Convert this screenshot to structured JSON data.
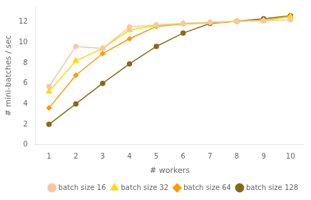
{
  "chart_data": {
    "type": "line",
    "xlabel": "# workers",
    "ylabel": "# mini-batches / sec",
    "x": [
      1,
      2,
      3,
      4,
      5,
      6,
      7,
      8,
      9,
      10
    ],
    "series": [
      {
        "name": "batch size 16",
        "color": "#f5c9a0",
        "marker": "circle",
        "values": [
          5.7,
          9.6,
          9.4,
          11.5,
          11.7,
          11.85,
          11.95,
          12.05,
          12.1,
          12.2
        ]
      },
      {
        "name": "batch size 32",
        "color": "#ffd700",
        "marker": "triangle",
        "values": [
          5.2,
          8.2,
          9.4,
          11.2,
          11.65,
          11.85,
          11.95,
          12.05,
          12.1,
          12.5
        ]
      },
      {
        "name": "batch size 64",
        "color": "#ff9900",
        "marker": "diamond",
        "values": [
          3.6,
          6.8,
          8.9,
          10.35,
          11.55,
          11.8,
          11.9,
          12.05,
          12.15,
          12.55
        ]
      },
      {
        "name": "batch size 128",
        "color": "#8b6914",
        "marker": "circle",
        "values": [
          2.0,
          4.0,
          6.0,
          7.9,
          9.6,
          10.9,
          11.85,
          12.05,
          12.3,
          12.6
        ]
      }
    ],
    "xlim": [
      0.5,
      10.5
    ],
    "xticks": [
      1,
      2,
      3,
      4,
      5,
      6,
      7,
      8,
      9,
      10
    ],
    "ylim": [
      0,
      13.5
    ],
    "yticks": [
      0,
      2,
      4,
      6,
      8,
      10,
      12
    ],
    "grid": false,
    "legend": "lower right"
  }
}
